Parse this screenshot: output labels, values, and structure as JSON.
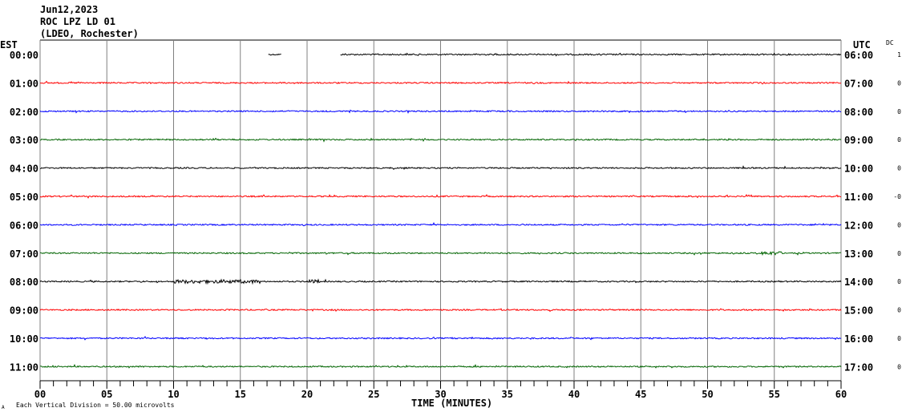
{
  "header": {
    "date": "Jun12,2023",
    "station": "ROC LPZ LD 01",
    "network": "(LDEO, Rochester)"
  },
  "chart_data": {
    "type": "line",
    "title": "ROC LPZ LD 01",
    "left_axis_label": "EST",
    "right_axis_label": "UTC",
    "dc_label": "DC",
    "xlabel": "TIME (MINUTES)",
    "xlim": [
      0,
      60
    ],
    "x_ticks": [
      "00",
      "05",
      "10",
      "15",
      "20",
      "25",
      "30",
      "35",
      "40",
      "45",
      "50",
      "55",
      "60"
    ],
    "minor_tick_step": 1,
    "grid_step_minutes": 5,
    "scale_note": "Each Vertical Division =   50.00 microvolts",
    "corner_mark": "A",
    "colors": {
      "black": "#000000",
      "red": "#ff0000",
      "blue": "#0000ff",
      "green": "#006400",
      "grid": "#808080"
    },
    "rows": [
      {
        "est": "00:00",
        "utc": "06:00",
        "dc": "1",
        "color": "#000000",
        "segments": [
          [
            17.1,
            18.1
          ],
          [
            22.5,
            60
          ]
        ],
        "events": []
      },
      {
        "est": "01:00",
        "utc": "07:00",
        "dc": "0",
        "color": "#ff0000",
        "segments": [
          [
            0,
            60
          ]
        ],
        "events": []
      },
      {
        "est": "02:00",
        "utc": "08:00",
        "dc": "0",
        "color": "#0000ff",
        "segments": [
          [
            0,
            60
          ]
        ],
        "events": []
      },
      {
        "est": "03:00",
        "utc": "09:00",
        "dc": "0",
        "color": "#006400",
        "segments": [
          [
            0,
            60
          ]
        ],
        "events": []
      },
      {
        "est": "04:00",
        "utc": "10:00",
        "dc": "0",
        "color": "#000000",
        "segments": [
          [
            0,
            60
          ]
        ],
        "events": []
      },
      {
        "est": "05:00",
        "utc": "11:00",
        "dc": "-0",
        "color": "#ff0000",
        "segments": [
          [
            0,
            60
          ]
        ],
        "events": []
      },
      {
        "est": "06:00",
        "utc": "12:00",
        "dc": "0",
        "color": "#0000ff",
        "segments": [
          [
            0,
            60
          ]
        ],
        "events": []
      },
      {
        "est": "07:00",
        "utc": "13:00",
        "dc": "0",
        "color": "#006400",
        "segments": [
          [
            0,
            60
          ]
        ],
        "events": [
          [
            54,
            55.5
          ]
        ]
      },
      {
        "est": "08:00",
        "utc": "14:00",
        "dc": "0",
        "color": "#000000",
        "segments": [
          [
            0,
            60
          ]
        ],
        "events": [
          [
            10,
            16.5
          ],
          [
            20,
            21
          ]
        ]
      },
      {
        "est": "09:00",
        "utc": "15:00",
        "dc": "0",
        "color": "#ff0000",
        "segments": [
          [
            0,
            60
          ]
        ],
        "events": []
      },
      {
        "est": "10:00",
        "utc": "16:00",
        "dc": "0",
        "color": "#0000ff",
        "segments": [
          [
            0,
            60
          ]
        ],
        "events": []
      },
      {
        "est": "11:00",
        "utc": "17:00",
        "dc": "0",
        "color": "#006400",
        "segments": [
          [
            0,
            60
          ]
        ],
        "events": []
      }
    ]
  }
}
